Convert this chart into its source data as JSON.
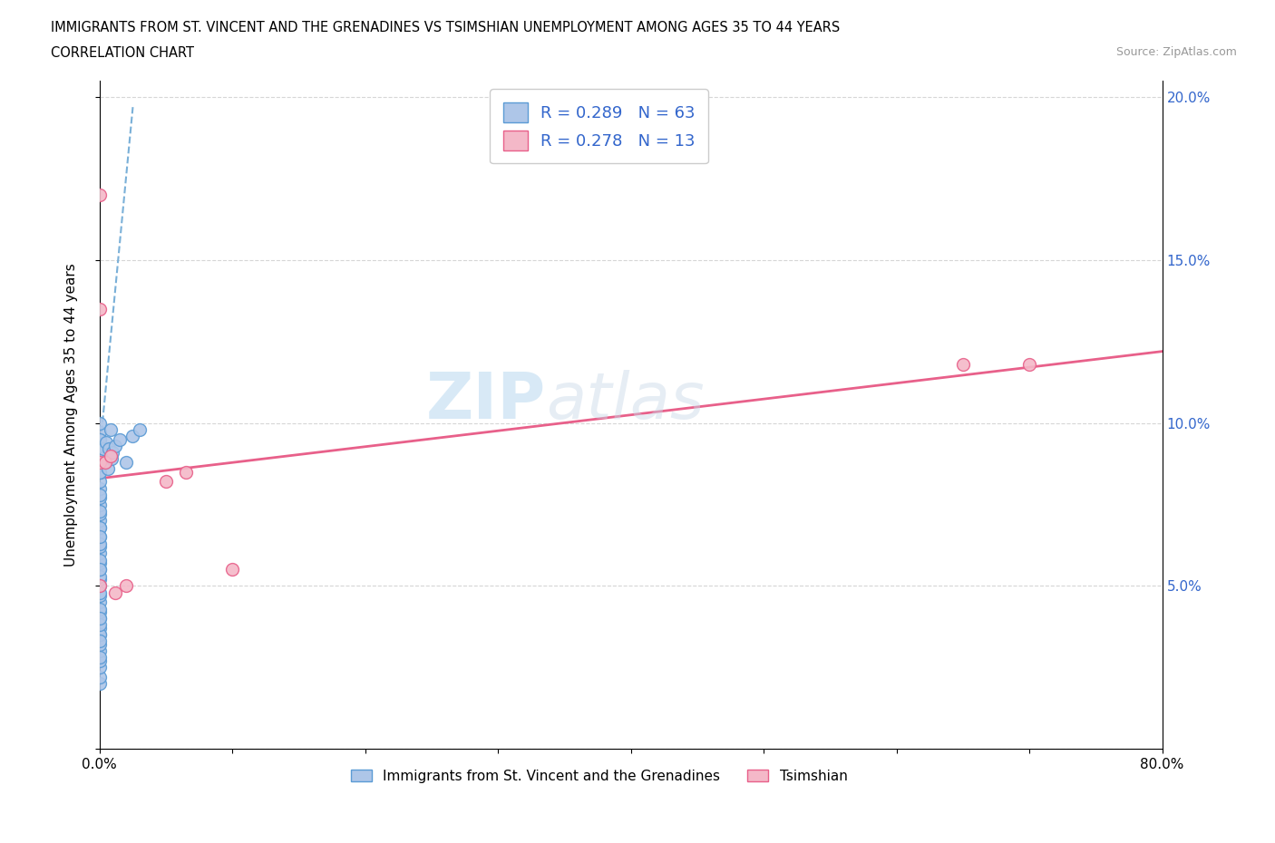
{
  "title_line1": "IMMIGRANTS FROM ST. VINCENT AND THE GRENADINES VS TSIMSHIAN UNEMPLOYMENT AMONG AGES 35 TO 44 YEARS",
  "title_line2": "CORRELATION CHART",
  "source": "Source: ZipAtlas.com",
  "ylabel": "Unemployment Among Ages 35 to 44 years",
  "xlim": [
    0.0,
    0.8
  ],
  "ylim": [
    0.0,
    0.205
  ],
  "xticks": [
    0.0,
    0.1,
    0.2,
    0.3,
    0.4,
    0.5,
    0.6,
    0.7,
    0.8
  ],
  "xticklabels": [
    "0.0%",
    "",
    "",
    "",
    "",
    "",
    "",
    "",
    "80.0%"
  ],
  "yticks": [
    0.0,
    0.05,
    0.1,
    0.15,
    0.2
  ],
  "yticklabels": [
    "",
    "5.0%",
    "10.0%",
    "15.0%",
    "20.0%"
  ],
  "blue_R": 0.289,
  "blue_N": 63,
  "pink_R": 0.278,
  "pink_N": 13,
  "blue_color": "#aec6e8",
  "pink_color": "#f4b8c8",
  "blue_edge_color": "#5b9bd5",
  "pink_edge_color": "#e8608a",
  "blue_line_color": "#7ab0d8",
  "pink_line_color": "#e8608a",
  "watermark_text": "ZIPatlas",
  "blue_scatter_x": [
    0.0,
    0.0,
    0.0,
    0.0,
    0.0,
    0.0,
    0.0,
    0.0,
    0.0,
    0.0,
    0.0,
    0.0,
    0.0,
    0.0,
    0.0,
    0.0,
    0.0,
    0.0,
    0.0,
    0.0,
    0.0,
    0.0,
    0.0,
    0.0,
    0.0,
    0.0,
    0.0,
    0.0,
    0.0,
    0.0,
    0.0,
    0.0,
    0.0,
    0.0,
    0.0,
    0.0,
    0.0,
    0.0,
    0.0,
    0.0,
    0.0,
    0.0,
    0.0,
    0.0,
    0.0,
    0.0,
    0.0,
    0.0,
    0.0,
    0.0,
    0.003,
    0.004,
    0.005,
    0.006,
    0.007,
    0.008,
    0.009,
    0.01,
    0.012,
    0.015,
    0.02,
    0.025,
    0.03
  ],
  "blue_scatter_y": [
    0.02,
    0.022,
    0.025,
    0.027,
    0.03,
    0.032,
    0.035,
    0.037,
    0.04,
    0.042,
    0.045,
    0.047,
    0.05,
    0.052,
    0.055,
    0.057,
    0.06,
    0.062,
    0.065,
    0.068,
    0.07,
    0.072,
    0.075,
    0.077,
    0.08,
    0.082,
    0.085,
    0.087,
    0.09,
    0.093,
    0.095,
    0.097,
    0.1,
    0.035,
    0.038,
    0.043,
    0.048,
    0.053,
    0.058,
    0.063,
    0.068,
    0.073,
    0.028,
    0.033,
    0.04,
    0.055,
    0.065,
    0.078,
    0.085,
    0.095,
    0.092,
    0.088,
    0.094,
    0.086,
    0.092,
    0.098,
    0.089,
    0.091,
    0.093,
    0.095,
    0.088,
    0.096,
    0.098
  ],
  "pink_scatter_x": [
    0.0,
    0.0,
    0.0,
    0.0,
    0.004,
    0.008,
    0.012,
    0.02,
    0.05,
    0.065,
    0.1,
    0.65,
    0.7
  ],
  "pink_scatter_y": [
    0.17,
    0.135,
    0.088,
    0.05,
    0.088,
    0.09,
    0.048,
    0.05,
    0.082,
    0.085,
    0.055,
    0.118,
    0.118
  ],
  "blue_trend_x": [
    0.0,
    0.025
  ],
  "blue_trend_y": [
    0.091,
    0.197
  ],
  "pink_trend_x": [
    0.0,
    0.8
  ],
  "pink_trend_y": [
    0.083,
    0.122
  ]
}
